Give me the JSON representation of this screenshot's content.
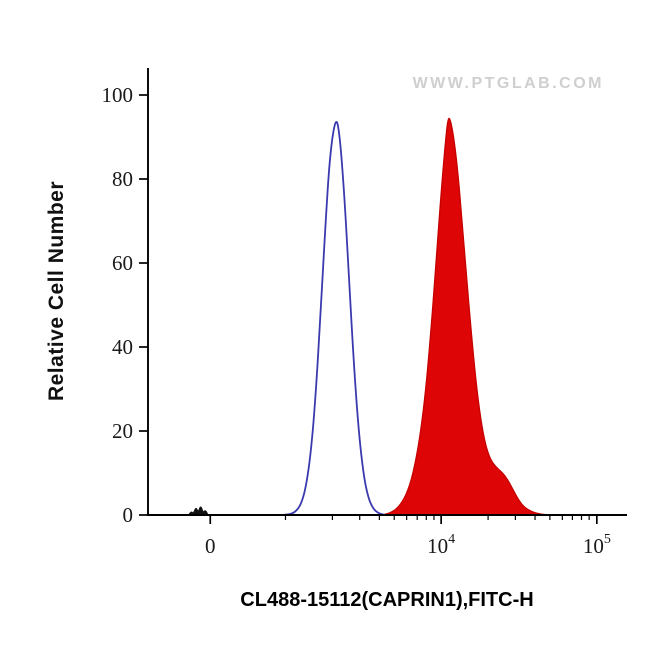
{
  "chart_data": {
    "type": "area",
    "chart_kind": "flow-cytometry-histogram-overlay",
    "title": "",
    "watermark": "WWW.PTGLAB.COM",
    "xlabel": "CL488-15112(CAPRIN1),FITC-H",
    "ylabel": "Relative Cell Number",
    "x_scale": "biexponential; series x values are fractions of plot width",
    "ylim": [
      0,
      100
    ],
    "y_ticks": [
      0,
      20,
      40,
      60,
      80,
      100
    ],
    "x_ticks": [
      {
        "pos": 0.13,
        "label": "0"
      },
      {
        "pos": 0.612,
        "label": "10^4",
        "base": "10",
        "exp": "4"
      },
      {
        "pos": 0.937,
        "label": "10^5",
        "base": "10",
        "exp": "5"
      }
    ],
    "x_minor_ticks": [
      0.287,
      0.385,
      0.442,
      0.483,
      0.514,
      0.54,
      0.562,
      0.581,
      0.597,
      0.71,
      0.767,
      0.808,
      0.839,
      0.865,
      0.886,
      0.905,
      0.921
    ],
    "series": [
      {
        "name": "control-open-histogram",
        "legend": "blue open histogram (control)",
        "stroke": "#3a3aae",
        "fill": "none",
        "peak": {
          "pos": 0.392,
          "height": 95
        },
        "points": [
          [
            0.28,
            0
          ],
          [
            0.29,
            0.1
          ],
          [
            0.3,
            0.3
          ],
          [
            0.31,
            1.0
          ],
          [
            0.32,
            2.7
          ],
          [
            0.33,
            6.8
          ],
          [
            0.34,
            14.9
          ],
          [
            0.35,
            28.3
          ],
          [
            0.36,
            47.1
          ],
          [
            0.37,
            68.2
          ],
          [
            0.38,
            86.1
          ],
          [
            0.392,
            95
          ],
          [
            0.4,
            90.9
          ],
          [
            0.41,
            76.1
          ],
          [
            0.42,
            55.5
          ],
          [
            0.43,
            35.3
          ],
          [
            0.44,
            19.6
          ],
          [
            0.45,
            9.5
          ],
          [
            0.46,
            4.0
          ],
          [
            0.47,
            1.5
          ],
          [
            0.48,
            0.5
          ],
          [
            0.49,
            0.1
          ],
          [
            0.5,
            0
          ]
        ]
      },
      {
        "name": "caprin1-stained-filled-histogram",
        "legend": "red filled histogram (CL488-15112 CAPRIN1)",
        "stroke": "#c40000",
        "fill": "#dd0505",
        "peak": {
          "pos": 0.627,
          "height": 95.5
        },
        "points": [
          [
            0.49,
            0
          ],
          [
            0.5,
            0.3
          ],
          [
            0.51,
            0.8
          ],
          [
            0.52,
            1.6
          ],
          [
            0.53,
            3.0
          ],
          [
            0.54,
            5.2
          ],
          [
            0.55,
            8.5
          ],
          [
            0.56,
            13.5
          ],
          [
            0.57,
            20.5
          ],
          [
            0.58,
            30
          ],
          [
            0.59,
            43
          ],
          [
            0.6,
            58
          ],
          [
            0.61,
            74
          ],
          [
            0.62,
            88
          ],
          [
            0.627,
            95.5
          ],
          [
            0.635,
            92.5
          ],
          [
            0.645,
            84
          ],
          [
            0.655,
            71
          ],
          [
            0.665,
            57
          ],
          [
            0.675,
            43.5
          ],
          [
            0.685,
            31.5
          ],
          [
            0.695,
            22.5
          ],
          [
            0.705,
            16.5
          ],
          [
            0.715,
            13.2
          ],
          [
            0.725,
            11.6
          ],
          [
            0.735,
            10.6
          ],
          [
            0.745,
            9.4
          ],
          [
            0.755,
            7.6
          ],
          [
            0.765,
            5.4
          ],
          [
            0.775,
            3.4
          ],
          [
            0.785,
            1.9
          ],
          [
            0.8,
            0.8
          ],
          [
            0.82,
            0.2
          ],
          [
            0.84,
            0
          ]
        ]
      },
      {
        "name": "baseline-debris-spikes",
        "legend": "small black spikes near zero",
        "stroke": "#111111",
        "fill": "#111111",
        "points": [
          [
            0.085,
            0
          ],
          [
            0.09,
            0.9
          ],
          [
            0.095,
            0.3
          ],
          [
            0.1,
            1.9
          ],
          [
            0.105,
            0.6
          ],
          [
            0.11,
            2.3
          ],
          [
            0.115,
            0.5
          ],
          [
            0.12,
            1.2
          ],
          [
            0.125,
            0
          ]
        ]
      }
    ],
    "colors": {
      "axis": "#000000",
      "tick_label": "#1a1a1a",
      "watermark": "#cfcfcf",
      "blue_curve": "#3a3aae",
      "red_fill": "#dd0505"
    }
  }
}
